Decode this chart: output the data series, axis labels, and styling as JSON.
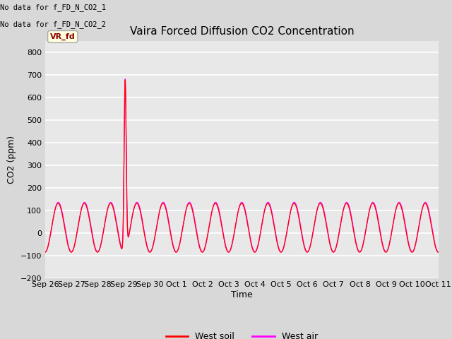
{
  "title": "Vaira Forced Diffusion CO2 Concentration",
  "xlabel": "Time",
  "ylabel": "CO2 (ppm)",
  "ylim": [
    -200,
    850
  ],
  "yticks": [
    -200,
    -100,
    0,
    100,
    200,
    300,
    400,
    500,
    600,
    700,
    800
  ],
  "fig_bg_color": "#d8d8d8",
  "axes_bg_color": "#e8e8e8",
  "grid_color": "#ffffff",
  "west_soil_color": "#ff0000",
  "west_air_color": "#ff00ff",
  "no_data_text1": "No data for f_FD_N_CO2_1",
  "no_data_text2": "No data for f_FD_N_CO2_2",
  "legend_label_soil": "West soil",
  "legend_label_air": "West air",
  "vr_fd_label": "VR_fd",
  "day_labels": [
    "Sep 26",
    "Sep 27",
    "Sep 28",
    "Sep 29",
    "Sep 30",
    "Oct 1",
    "Oct 2",
    "Oct 3",
    "Oct 4",
    "Oct 5",
    "Oct 6",
    "Oct 7",
    "Oct 8",
    "Oct 9",
    "Oct 10",
    "Oct 11"
  ]
}
